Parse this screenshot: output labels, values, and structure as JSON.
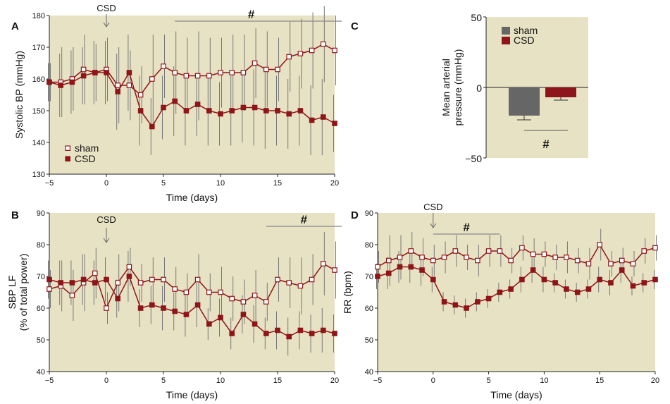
{
  "colors": {
    "sham": "#8e1519",
    "csd": "#8e1519",
    "sham_fill": "#ffffff",
    "csd_fill": "#8e1519",
    "plot_bg": "#e8e2c4",
    "error": "#777777",
    "sham_bar": "#666666",
    "csd_bar": "#8e1519"
  },
  "chart_data": [
    {
      "type": "line",
      "panel": "A",
      "xlabel": "Time (days)",
      "ylabel": "Systolic BP (mmHg)",
      "xlim": [
        -5,
        20
      ],
      "ylim": [
        130,
        180
      ],
      "xticks": [
        "−5",
        "0",
        "5",
        "10",
        "15",
        "20"
      ],
      "yticks": [
        "130",
        "140",
        "150",
        "160",
        "170",
        "180"
      ],
      "x": [
        -5,
        -4,
        -3,
        -2,
        -1,
        0,
        1,
        2,
        3,
        4,
        5,
        6,
        7,
        8,
        9,
        10,
        11,
        12,
        13,
        14,
        15,
        16,
        17,
        18,
        19,
        20
      ],
      "series": [
        {
          "name": "sham",
          "values": [
            159,
            159,
            160,
            163,
            162,
            163,
            158,
            158,
            155,
            160,
            164,
            162,
            161,
            161,
            161,
            162,
            162,
            162,
            165,
            163,
            163,
            167,
            168,
            169,
            171,
            169
          ],
          "err": [
            6,
            11,
            10,
            11,
            9,
            10,
            12,
            11,
            9,
            14,
            10,
            13,
            12,
            14,
            12,
            11,
            12,
            12,
            11,
            12,
            10,
            11,
            11,
            12,
            12,
            11
          ]
        },
        {
          "name": "CSD",
          "values": [
            159,
            158,
            159,
            161,
            162,
            162,
            156,
            162,
            150,
            145,
            151,
            153,
            150,
            152,
            150,
            149,
            150,
            151,
            151,
            150,
            150,
            149,
            150,
            147,
            148,
            146
          ],
          "err": [
            6,
            10,
            10,
            9,
            10,
            10,
            12,
            12,
            11,
            9,
            10,
            11,
            11,
            10,
            11,
            10,
            11,
            11,
            12,
            12,
            11,
            11,
            11,
            11,
            12,
            9
          ]
        }
      ],
      "annotations": {
        "event_label": "CSD",
        "event_x": 0,
        "sig_label": "#",
        "sig_range": [
          6,
          20
        ]
      },
      "legend": [
        "sham",
        "CSD"
      ],
      "legend_position": "bottom-left"
    },
    {
      "type": "line",
      "panel": "B",
      "xlabel": "Time (days)",
      "ylabel": "SBP LF (% of total power)",
      "ylabel_lines": [
        "SBP LF",
        "(% of total power)"
      ],
      "xlim": [
        -5,
        20
      ],
      "ylim": [
        40,
        90
      ],
      "xticks": [
        "−5",
        "0",
        "5",
        "10",
        "15",
        "20"
      ],
      "yticks": [
        "40",
        "50",
        "60",
        "70",
        "80",
        "90"
      ],
      "x": [
        -5,
        -4,
        -3,
        -2,
        -1,
        0,
        1,
        2,
        3,
        4,
        5,
        6,
        7,
        8,
        9,
        10,
        11,
        12,
        13,
        14,
        15,
        16,
        17,
        18,
        19,
        20
      ],
      "series": [
        {
          "name": "sham",
          "values": [
            66,
            67,
            64,
            68,
            71,
            60,
            68,
            73,
            68,
            69,
            69,
            66,
            65,
            69,
            65,
            65,
            63,
            62,
            64,
            62,
            69,
            68,
            67,
            69,
            74,
            72
          ],
          "err": [
            6,
            8,
            8,
            9,
            8,
            5,
            9,
            6,
            6,
            7,
            7,
            7,
            6,
            8,
            6,
            8,
            7,
            7,
            8,
            6,
            7,
            8,
            9,
            8,
            10,
            9
          ]
        },
        {
          "name": "CSD",
          "values": [
            69,
            68,
            68,
            69,
            68,
            69,
            63,
            70,
            60,
            61,
            60,
            59,
            58,
            61,
            55,
            57,
            52,
            58,
            55,
            52,
            53,
            51,
            53,
            52,
            53,
            52
          ],
          "err": [
            6,
            7,
            7,
            8,
            7,
            7,
            6,
            8,
            6,
            6,
            7,
            6,
            7,
            7,
            5,
            6,
            5,
            6,
            6,
            5,
            6,
            6,
            6,
            6,
            7,
            6
          ]
        }
      ],
      "annotations": {
        "event_label": "CSD",
        "event_x": 0,
        "sig_label": "#",
        "sig_range": [
          14,
          20
        ]
      }
    },
    {
      "type": "bar",
      "panel": "C",
      "ylabel": "Mean arterial pressure (mmHg)",
      "ylabel_lines": [
        "Mean arterial",
        "pressure (mmHg)"
      ],
      "ylim": [
        -50,
        50
      ],
      "yticks": [
        "50",
        "0",
        "−50"
      ],
      "categories": [
        "sham",
        "CSD"
      ],
      "values": [
        -20,
        -7
      ],
      "err": [
        3,
        2
      ],
      "legend": [
        "sham",
        "CSD"
      ],
      "legend_position": "top-left",
      "sig_label": "#"
    },
    {
      "type": "line",
      "panel": "D",
      "xlabel": "Time (days)",
      "ylabel": "RR (bpm)",
      "xlim": [
        -5,
        20
      ],
      "ylim": [
        40,
        90
      ],
      "xticks": [
        "−5",
        "0",
        "5",
        "10",
        "15",
        "20"
      ],
      "yticks": [
        "40",
        "50",
        "60",
        "70",
        "80",
        "90"
      ],
      "x": [
        -5,
        -4,
        -3,
        -2,
        -1,
        0,
        1,
        2,
        3,
        4,
        5,
        6,
        7,
        8,
        9,
        10,
        11,
        12,
        13,
        14,
        15,
        16,
        17,
        18,
        19,
        20
      ],
      "series": [
        {
          "name": "sham",
          "values": [
            73,
            75,
            76,
            78,
            76,
            75,
            76,
            78,
            76,
            75,
            78,
            78,
            75,
            79,
            77,
            77,
            76,
            76,
            75,
            74,
            80,
            74,
            75,
            74,
            78,
            79
          ],
          "err": [
            5,
            8,
            7,
            6,
            6,
            5,
            5,
            5,
            4,
            5,
            5,
            5,
            4,
            4,
            5,
            4,
            4,
            5,
            4,
            5,
            5,
            4,
            4,
            4,
            4,
            4
          ]
        },
        {
          "name": "CSD",
          "values": [
            70,
            71,
            73,
            73,
            72,
            69,
            62,
            61,
            60,
            62,
            63,
            65,
            66,
            69,
            72,
            69,
            68,
            66,
            65,
            66,
            69,
            68,
            72,
            67,
            68,
            69
          ],
          "err": [
            4,
            5,
            5,
            5,
            5,
            4,
            3,
            3,
            3,
            3,
            3,
            3,
            3,
            4,
            4,
            4,
            3,
            3,
            3,
            3,
            4,
            4,
            4,
            3,
            3,
            3
          ]
        }
      ],
      "annotations": {
        "event_label": "CSD",
        "event_x": 0,
        "sig_label": "#",
        "sig_range": [
          0,
          6
        ]
      }
    }
  ]
}
